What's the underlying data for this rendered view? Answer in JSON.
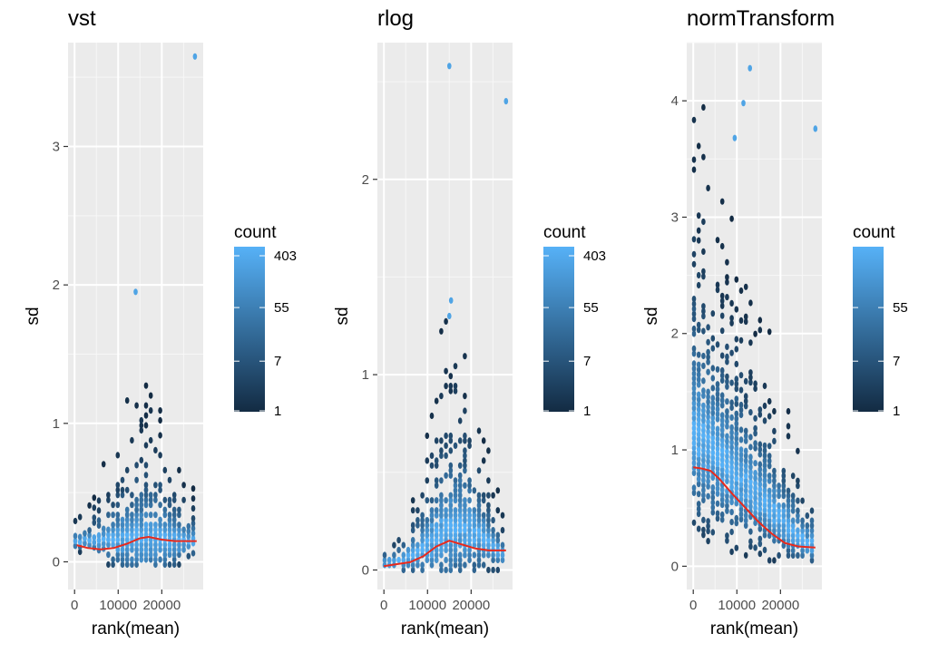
{
  "chart_data": [
    {
      "type": "heatmap",
      "title": "vst",
      "xlabel": "rank(mean)",
      "ylabel": "sd",
      "xlim": [
        -1500,
        29500
      ],
      "ylim": [
        -0.2,
        3.75
      ],
      "x_ticks": [
        0,
        10000,
        20000
      ],
      "x_tick_labels": [
        "0",
        "10000",
        "20000"
      ],
      "y_ticks": [
        0,
        1,
        2,
        3
      ],
      "y_tick_labels": [
        "0",
        "1",
        "2",
        "3"
      ],
      "legend": {
        "title": "count",
        "labels": [
          "403",
          "55",
          "7",
          "1"
        ],
        "values": [
          403,
          55,
          7,
          1
        ],
        "scale": "log",
        "placement": "right"
      },
      "colors": {
        "low": "#132B43",
        "high": "#56B1F7",
        "trend_line": "#e8291c",
        "panel": "#ebebeb",
        "grid": "#ffffff"
      },
      "trend": {
        "x": [
          500,
          3000,
          6000,
          9000,
          12000,
          15000,
          17000,
          20000,
          23000,
          26000,
          28000
        ],
        "y": [
          0.12,
          0.1,
          0.09,
          0.1,
          0.13,
          0.17,
          0.18,
          0.16,
          0.15,
          0.15,
          0.15
        ]
      },
      "outliers": [
        {
          "x": 14000,
          "y": 1.95
        },
        {
          "x": 27600,
          "y": 3.65
        }
      ]
    },
    {
      "type": "heatmap",
      "title": "rlog",
      "xlabel": "rank(mean)",
      "ylabel": "sd",
      "xlim": [
        -1500,
        29500
      ],
      "ylim": [
        -0.1,
        2.7
      ],
      "x_ticks": [
        0,
        10000,
        20000
      ],
      "x_tick_labels": [
        "0",
        "10000",
        "20000"
      ],
      "y_ticks": [
        0,
        1,
        2
      ],
      "y_tick_labels": [
        "0",
        "1",
        "2"
      ],
      "legend": {
        "title": "count",
        "labels": [
          "403",
          "55",
          "7",
          "1"
        ],
        "values": [
          403,
          55,
          7,
          1
        ],
        "scale": "log",
        "placement": "right"
      },
      "colors": {
        "low": "#132B43",
        "high": "#56B1F7",
        "trend_line": "#e8291c",
        "panel": "#ebebeb",
        "grid": "#ffffff"
      },
      "trend": {
        "x": [
          0,
          3000,
          6000,
          9000,
          12000,
          15000,
          18000,
          21000,
          24000,
          28000
        ],
        "y": [
          0.02,
          0.03,
          0.04,
          0.07,
          0.12,
          0.15,
          0.13,
          0.11,
          0.1,
          0.1
        ]
      },
      "outliers": [
        {
          "x": 15000,
          "y": 2.58
        },
        {
          "x": 28000,
          "y": 2.4
        },
        {
          "x": 15400,
          "y": 1.38
        },
        {
          "x": 15000,
          "y": 1.3
        }
      ]
    },
    {
      "type": "heatmap",
      "title": "normTransform",
      "xlabel": "rank(mean)",
      "ylabel": "sd",
      "xlim": [
        -1500,
        29500
      ],
      "ylim": [
        -0.2,
        4.5
      ],
      "x_ticks": [
        0,
        10000,
        20000
      ],
      "x_tick_labels": [
        "0",
        "10000",
        "20000"
      ],
      "y_ticks": [
        0,
        1,
        2,
        3,
        4
      ],
      "y_tick_labels": [
        "0",
        "1",
        "2",
        "3",
        "4"
      ],
      "legend": {
        "title": "count",
        "labels": [
          "55",
          "7",
          "1"
        ],
        "values": [
          55,
          7,
          1
        ],
        "scale": "log",
        "placement": "right"
      },
      "colors": {
        "low": "#132B43",
        "high": "#56B1F7",
        "trend_line": "#e8291c",
        "panel": "#ebebeb",
        "grid": "#ffffff"
      },
      "trend": {
        "x": [
          0,
          2000,
          4000,
          6000,
          9000,
          12000,
          15000,
          18000,
          21000,
          24000,
          28000
        ],
        "y": [
          0.85,
          0.84,
          0.82,
          0.75,
          0.62,
          0.5,
          0.38,
          0.28,
          0.2,
          0.17,
          0.16
        ]
      },
      "outliers": [
        {
          "x": 13000,
          "y": 4.28
        },
        {
          "x": 11500,
          "y": 3.98
        },
        {
          "x": 28000,
          "y": 3.76
        },
        {
          "x": 9500,
          "y": 3.68
        }
      ]
    }
  ]
}
